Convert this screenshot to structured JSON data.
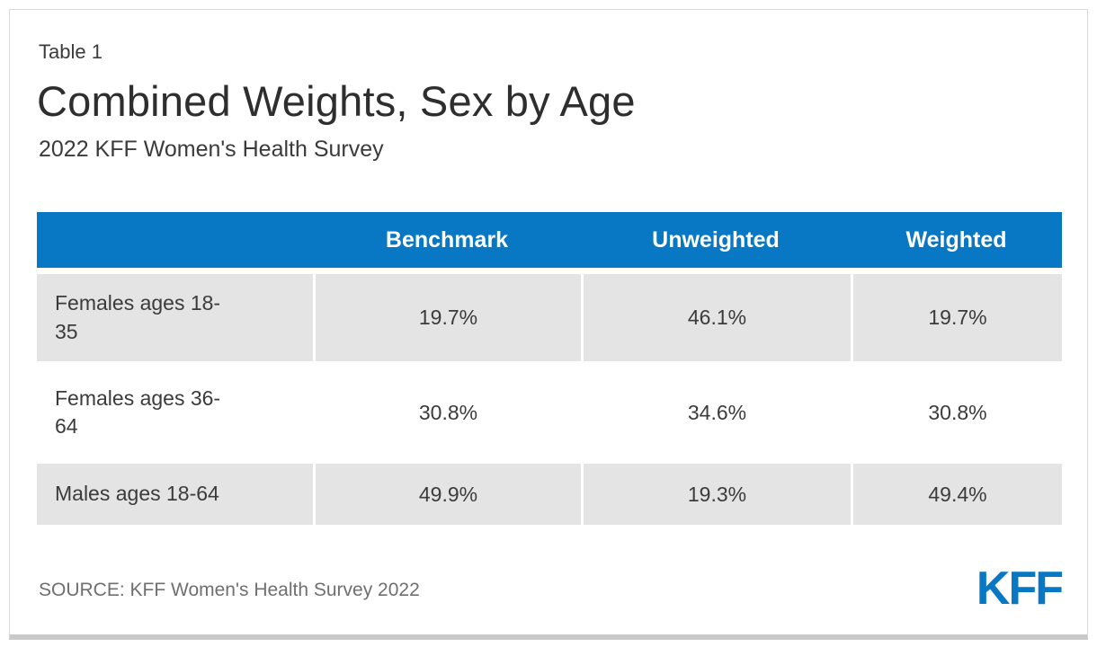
{
  "page": {
    "table_label": "Table 1",
    "title": "Combined Weights, Sex by Age",
    "subtitle": "2022 KFF Women's Health Survey",
    "source": "SOURCE: KFF Women's Health Survey 2022",
    "logo": "KFF"
  },
  "colors": {
    "header_bg": "#0877c4",
    "header_text": "#ffffff",
    "row_stripe": "#e4e4e4",
    "body_text": "#3b3b3b",
    "source_text": "#6f6f6f",
    "logo_blue": "#0877c4",
    "card_border": "#d9d9d9"
  },
  "chart_data": {
    "type": "table",
    "title": "Combined Weights, Sex by Age",
    "subtitle": "2022 KFF Women's Health Survey",
    "columns": [
      "",
      "Benchmark",
      "Unweighted",
      "Weighted"
    ],
    "rows": [
      {
        "label": "Females ages 18-35",
        "values": [
          "19.7%",
          "46.1%",
          "19.7%"
        ]
      },
      {
        "label": "Females ages 36-64",
        "values": [
          "30.8%",
          "34.6%",
          "30.8%"
        ]
      },
      {
        "label": "Males ages 18-64",
        "values": [
          "49.9%",
          "19.3%",
          "49.4%"
        ]
      }
    ],
    "source": "SOURCE: KFF Women's Health Survey 2022",
    "layout": {
      "striped_rows": [
        1,
        3
      ],
      "header_color": "#0877c4"
    }
  }
}
